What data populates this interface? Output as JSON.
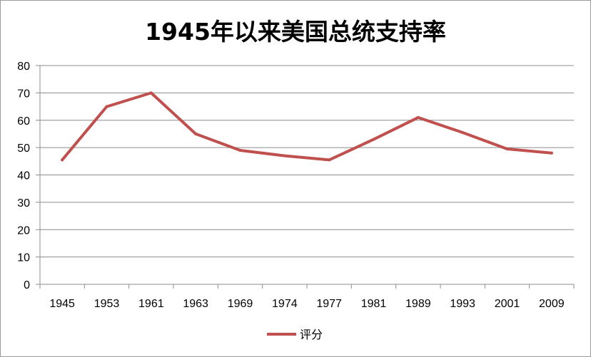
{
  "chart_data": {
    "type": "line",
    "title": "1945年以来美国总统支持率",
    "xlabel": "",
    "ylabel": "",
    "categories": [
      "1945",
      "1953",
      "1961",
      "1963",
      "1969",
      "1974",
      "1977",
      "1981",
      "1989",
      "1993",
      "2001",
      "2009"
    ],
    "series": [
      {
        "name": "评分",
        "color": "#c0504d",
        "values": [
          45.5,
          65,
          70,
          55,
          49,
          47,
          45.5,
          53,
          61,
          55.5,
          49.5,
          48
        ]
      }
    ],
    "ylim": [
      0,
      80
    ],
    "yticks": [
      0,
      10,
      20,
      30,
      40,
      50,
      60,
      70,
      80
    ],
    "grid": true,
    "legend_position": "bottom"
  }
}
